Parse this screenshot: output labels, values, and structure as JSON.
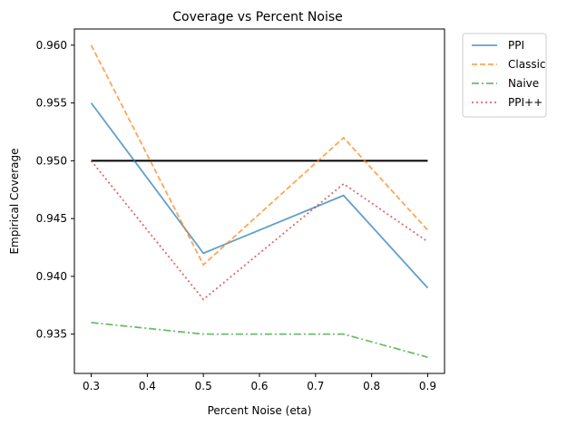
{
  "chart_data": {
    "type": "line",
    "title": "Coverage vs Percent Noise",
    "xlabel": "Percent Noise (eta)",
    "ylabel": "Empirical Coverage",
    "x": [
      0.3,
      0.5,
      0.75,
      0.9
    ],
    "xlim": [
      0.27,
      0.93
    ],
    "ylim": [
      0.9316,
      0.9614
    ],
    "xticks": [
      "0.3",
      "0.4",
      "0.5",
      "0.6",
      "0.7",
      "0.8",
      "0.9"
    ],
    "yticks": [
      "0.935",
      "0.940",
      "0.945",
      "0.950",
      "0.955",
      "0.960"
    ],
    "grid": false,
    "legend_position": "outside-top-right",
    "reference_line": {
      "y": 0.95,
      "color": "#000000"
    },
    "series": [
      {
        "name": "PPI",
        "values": [
          0.955,
          0.942,
          0.947,
          0.939
        ],
        "color": "#1f77b4",
        "dash": "solid"
      },
      {
        "name": "Classic",
        "values": [
          0.96,
          0.941,
          0.952,
          0.944
        ],
        "color": "#ff7f0e",
        "dash": "dashed"
      },
      {
        "name": "Naive",
        "values": [
          0.936,
          0.935,
          0.935,
          0.933
        ],
        "color": "#2ca02c",
        "dash": "dashdot"
      },
      {
        "name": "PPI++",
        "values": [
          0.95,
          0.938,
          0.948,
          0.943
        ],
        "color": "#d62728",
        "dash": "dotted"
      }
    ]
  }
}
